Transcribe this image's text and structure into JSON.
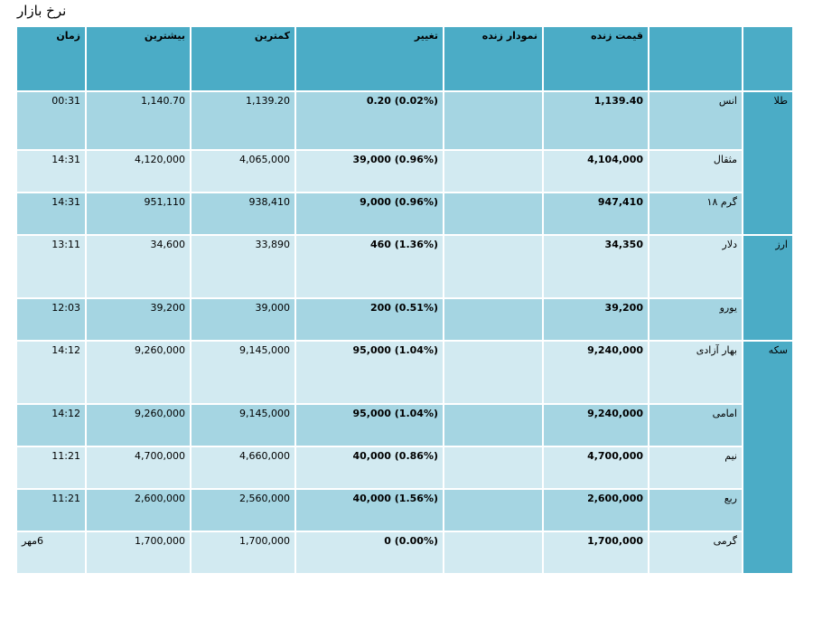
{
  "title": "نرخ بازار",
  "headers": {
    "time": "زمان",
    "high": "بیشترین",
    "low": "کمترین",
    "change": "تغییر",
    "live_chart": "نمودار زنده",
    "live_price": "قیمت زنده"
  },
  "categories": {
    "gold": "طلا",
    "currency": "ارز",
    "coin": "سکه"
  },
  "rows": [
    {
      "name": "انس",
      "price": "1,139.40",
      "change": "0.20 (0.02%)",
      "low": "1,139.20",
      "high": "1,140.70",
      "time": "00:31"
    },
    {
      "name": "مثقال",
      "price": "4,104,000",
      "change": "39,000 (0.96%)",
      "low": "4,065,000",
      "high": "4,120,000",
      "time": "14:31"
    },
    {
      "name": "گرم ۱۸",
      "price": "947,410",
      "change": "9,000 (0.96%)",
      "low": "938,410",
      "high": "951,110",
      "time": "14:31"
    },
    {
      "name": "دلار",
      "price": "34,350",
      "change": "460 (1.36%)",
      "low": "33,890",
      "high": "34,600",
      "time": "13:11"
    },
    {
      "name": "یورو",
      "price": "39,200",
      "change": "200 (0.51%)",
      "low": "39,000",
      "high": "39,200",
      "time": "12:03"
    },
    {
      "name": "بهار آزادی",
      "price": "9,240,000",
      "change": "95,000 (1.04%)",
      "low": "9,145,000",
      "high": "9,260,000",
      "time": "14:12"
    },
    {
      "name": "امامی",
      "price": "9,240,000",
      "change": "95,000 (1.04%)",
      "low": "9,145,000",
      "high": "9,260,000",
      "time": "14:12"
    },
    {
      "name": "نیم",
      "price": "4,700,000",
      "change": "40,000 (0.86%)",
      "low": "4,660,000",
      "high": "4,700,000",
      "time": "11:21"
    },
    {
      "name": "ربع",
      "price": "2,600,000",
      "change": "40,000 (1.56%)",
      "low": "2,560,000",
      "high": "2,600,000",
      "time": "11:21"
    },
    {
      "name": "گرمی",
      "price": "1,700,000",
      "change": "0 (0.00%)",
      "low": "1,700,000",
      "high": "1,700,000",
      "time": "6مهر"
    }
  ]
}
